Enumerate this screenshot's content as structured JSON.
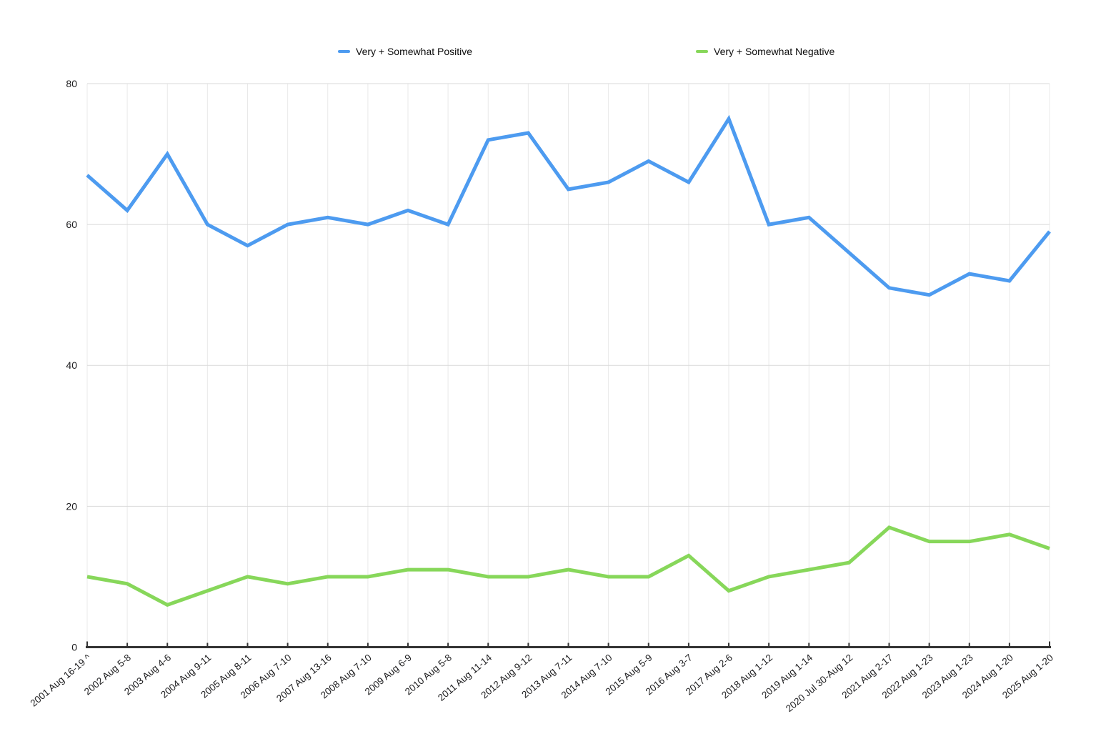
{
  "legend": {
    "positive_label": "Very + Somewhat Positive",
    "negative_label": "Very + Somewhat Negative"
  },
  "colors": {
    "positive": "#4D9BF0",
    "negative": "#87D75A",
    "grid_horizontal": "#D9D9D9",
    "grid_vertical": "#E9E9E9",
    "axis": "#333333",
    "tick_text": "#1C1C1E",
    "legend_text": "#0D0D0D"
  },
  "chart_data": {
    "type": "line",
    "categories": [
      "2001 Aug 16-19 ^",
      "2002 Aug 5-8",
      "2003 Aug 4-6",
      "2004 Aug 9-11",
      "2005 Aug 8-11",
      "2006 Aug 7-10",
      "2007 Aug 13-16",
      "2008 Aug 7-10",
      "2009 Aug 6-9",
      "2010 Aug 5-8",
      "2011 Aug 11-14",
      "2012 Aug 9-12",
      "2013 Aug 7-11",
      "2014 Aug 7-10",
      "2015 Aug 5-9",
      "2016 Aug 3-7",
      "2017 Aug 2-6",
      "2018 Aug 1-12",
      "2019 Aug 1-14",
      "2020 Jul 30-Aug 12",
      "2021 Aug 2-17",
      "2022 Aug 1-23",
      "2023 Aug 1-23",
      "2024 Aug 1-20",
      "2025 Aug 1-20"
    ],
    "series": [
      {
        "name": "Very + Somewhat Positive",
        "color": "#4D9BF0",
        "values": [
          67,
          62,
          70,
          60,
          57,
          60,
          61,
          60,
          62,
          60,
          72,
          73,
          65,
          66,
          69,
          66,
          75,
          60,
          61,
          56,
          51,
          50,
          53,
          52,
          59
        ]
      },
      {
        "name": "Very + Somewhat Negative",
        "color": "#87D75A",
        "values": [
          10,
          9,
          6,
          8,
          10,
          9,
          10,
          10,
          11,
          11,
          10,
          10,
          11,
          10,
          10,
          13,
          8,
          10,
          11,
          12,
          17,
          15,
          15,
          16,
          14
        ]
      }
    ],
    "ylim": [
      0,
      80
    ],
    "yticks": [
      0,
      20,
      40,
      60,
      80
    ],
    "grid": true,
    "legend_position": "top"
  }
}
